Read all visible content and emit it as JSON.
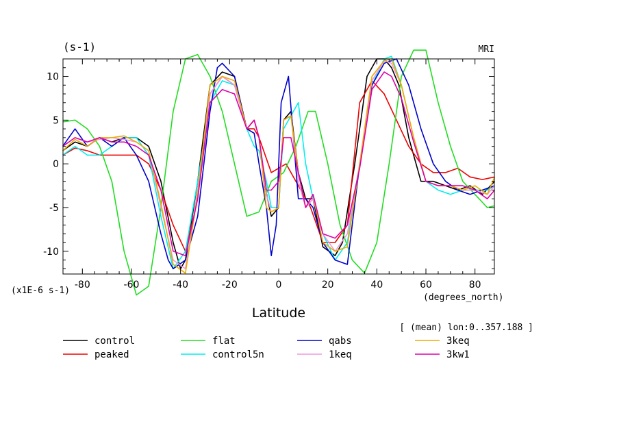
{
  "chart_data": {
    "type": "line",
    "units_label": "(s-1)",
    "model_label": "MRI",
    "scale_label": "(x1E-6 s-1)",
    "xunits_label": "(degrees_north)",
    "xlabel": "Latitude",
    "subtitle": "[ (mean) lon:0..357.188 ]",
    "xlim": [
      -87.9,
      87.9
    ],
    "ylim": [
      -12.6,
      12.0
    ],
    "xticks": [
      -80,
      -60,
      -40,
      -20,
      0,
      20,
      40,
      60,
      80
    ],
    "yticks": [
      -10,
      -5,
      0,
      5,
      10
    ],
    "xtick_labels": [
      "-80",
      "-60",
      "-40",
      "-20",
      "0",
      "20",
      "40",
      "60",
      "80"
    ],
    "ytick_labels": [
      "-10",
      "-5",
      "0",
      "5",
      "10"
    ],
    "series": [
      {
        "name": "control",
        "color": "#000000",
        "x": [
          -88,
          -83,
          -78,
          -73,
          -68,
          -63,
          -58,
          -53,
          -48,
          -43,
          -40,
          -38,
          -33,
          -28,
          -23,
          -18,
          -13,
          -10,
          -8,
          -6,
          -3,
          0,
          2,
          5,
          8,
          11,
          14,
          18,
          23,
          26,
          31,
          36,
          40,
          43,
          46,
          49,
          53,
          58,
          63,
          68,
          73,
          78,
          83,
          88
        ],
        "y": [
          1.5,
          2.5,
          2,
          3,
          2.5,
          3,
          3,
          2,
          -2,
          -9,
          -12,
          -11,
          -2,
          9,
          10.5,
          10,
          4,
          5,
          3,
          -2,
          -6,
          -5,
          5,
          6,
          -1,
          -4,
          -4,
          -9.5,
          -10.5,
          -9,
          0,
          10,
          12,
          12,
          11,
          9,
          3,
          -2,
          -2,
          -2.5,
          -3,
          -2.5,
          -3.5,
          -2
        ]
      },
      {
        "name": "peaked",
        "color": "#ee0000",
        "x": [
          -88,
          -83,
          -78,
          -73,
          -68,
          -63,
          -58,
          -53,
          -48,
          -43,
          -38,
          -33,
          -28,
          -23,
          -18,
          -13,
          -10,
          -8,
          -3,
          0,
          3,
          8,
          13,
          18,
          23,
          28,
          33,
          38,
          43,
          48,
          53,
          58,
          63,
          68,
          73,
          78,
          83,
          88
        ],
        "y": [
          1,
          1.8,
          1.5,
          1,
          1,
          1,
          1,
          0,
          -3,
          -7,
          -10,
          -4,
          8,
          10,
          9,
          4,
          4,
          3,
          -1,
          -0.5,
          0,
          -2.5,
          -5,
          -9,
          -9,
          -7,
          7,
          9.5,
          8,
          5,
          2,
          0,
          -1,
          -1,
          -0.5,
          -1.5,
          -1.8,
          -1.5
        ]
      },
      {
        "name": "flat",
        "color": "#22dd22",
        "x": [
          -88,
          -83,
          -78,
          -73,
          -68,
          -63,
          -58,
          -53,
          -48,
          -43,
          -38,
          -33,
          -28,
          -23,
          -18,
          -13,
          -8,
          -3,
          2,
          7,
          12,
          15,
          20,
          25,
          30,
          35,
          40,
          45,
          50,
          55,
          60,
          65,
          70,
          75,
          80,
          85,
          88
        ],
        "y": [
          4.8,
          5,
          4,
          2,
          -2,
          -10,
          -15,
          -14,
          -5,
          6,
          12,
          12.5,
          10,
          6,
          0,
          -6,
          -5.5,
          -2,
          -1,
          2,
          6,
          6,
          0,
          -7,
          -11,
          -12.5,
          -9,
          0,
          10,
          13,
          13,
          7,
          2,
          -2,
          -3.5,
          -5,
          -4.8
        ]
      },
      {
        "name": "control5n",
        "color": "#00eeee",
        "x": [
          -88,
          -83,
          -78,
          -73,
          -68,
          -63,
          -58,
          -53,
          -48,
          -43,
          -38,
          -33,
          -28,
          -23,
          -18,
          -13,
          -10,
          -8,
          -5,
          -3,
          0,
          2,
          5,
          8,
          11,
          14,
          18,
          23,
          28,
          33,
          38,
          43,
          46,
          50,
          55,
          60,
          65,
          70,
          75,
          80,
          85,
          88
        ],
        "y": [
          1,
          2,
          1,
          1,
          2,
          3,
          3,
          1,
          -6,
          -12,
          -10,
          -2,
          7,
          9.5,
          9,
          4,
          2,
          1.5,
          -2,
          -5,
          -5,
          4,
          5.5,
          7,
          0,
          -4,
          -8,
          -11,
          -9,
          0,
          9,
          12,
          12.3,
          9,
          3,
          -2,
          -3,
          -3.5,
          -3,
          -3,
          -3,
          -2.5
        ]
      },
      {
        "name": "qabs",
        "color": "#0000cc",
        "x": [
          -88,
          -83,
          -78,
          -73,
          -68,
          -63,
          -58,
          -53,
          -48,
          -45,
          -43,
          -38,
          -33,
          -28,
          -25,
          -23,
          -18,
          -13,
          -10,
          -8,
          -5,
          -3,
          -1,
          1,
          4,
          6,
          8,
          11,
          14,
          18,
          23,
          28,
          33,
          38,
          43,
          48,
          53,
          58,
          63,
          68,
          73,
          78,
          83,
          88
        ],
        "y": [
          2,
          4,
          2,
          3,
          2,
          3,
          1,
          -2,
          -8,
          -11,
          -12,
          -11,
          -6,
          6,
          11,
          11.5,
          10,
          4,
          3.5,
          0,
          -5,
          -10.5,
          -7,
          7,
          10,
          3,
          -4,
          -4,
          -5,
          -9,
          -11,
          -11.5,
          0,
          9,
          11.5,
          12,
          9,
          4,
          0,
          -2,
          -3,
          -3.5,
          -3,
          -2.5
        ]
      },
      {
        "name": "1keq",
        "color": "#ee99dd",
        "x": [
          -88,
          -83,
          -78,
          -73,
          -68,
          -63,
          -58,
          -53,
          -48,
          -43,
          -38,
          -33,
          -28,
          -23,
          -18,
          -13,
          -10,
          -8,
          -5,
          -3,
          0,
          2,
          5,
          8,
          11,
          14,
          18,
          23,
          28,
          33,
          38,
          43,
          46,
          50,
          55,
          60,
          65,
          70,
          75,
          80,
          85,
          88
        ],
        "y": [
          2,
          3,
          2.5,
          2.8,
          3,
          2.8,
          2.5,
          1.5,
          -5,
          -11,
          -12,
          -3,
          8,
          10,
          9,
          4,
          5,
          3,
          -3.5,
          -5.5,
          -5,
          5,
          5.5,
          -2,
          -5,
          -4,
          -8,
          -10,
          -8,
          0,
          9.5,
          11.8,
          11.5,
          9,
          3,
          -2,
          -2.5,
          -2.5,
          -3,
          -3,
          -3.5,
          -2.5
        ]
      },
      {
        "name": "3keq",
        "color": "#eeaa00",
        "x": [
          -88,
          -83,
          -78,
          -73,
          -68,
          -63,
          -58,
          -53,
          -48,
          -43,
          -38,
          -33,
          -28,
          -23,
          -18,
          -13,
          -10,
          -8,
          -5,
          -3,
          0,
          2,
          5,
          8,
          11,
          14,
          18,
          23,
          28,
          33,
          38,
          43,
          46,
          50,
          55,
          60,
          65,
          70,
          75,
          80,
          85,
          88
        ],
        "y": [
          1.5,
          2.8,
          2,
          3,
          3,
          3.2,
          2.5,
          1.5,
          -4.5,
          -11.5,
          -12.5,
          -3.5,
          9,
          10,
          9.5,
          4,
          5,
          3,
          -5,
          -5.5,
          -5,
          5,
          5.5,
          -1,
          -5,
          -3.5,
          -9,
          -10,
          -9.5,
          0,
          10,
          11.8,
          12,
          9,
          3,
          -2,
          -2.5,
          -2.5,
          -3,
          -2.5,
          -3.5,
          -1.5
        ]
      },
      {
        "name": "3kw1",
        "color": "#dd00aa",
        "x": [
          -88,
          -83,
          -78,
          -73,
          -68,
          -63,
          -58,
          -53,
          -48,
          -43,
          -38,
          -33,
          -28,
          -23,
          -18,
          -13,
          -10,
          -8,
          -5,
          -3,
          0,
          2,
          5,
          8,
          11,
          14,
          18,
          23,
          28,
          33,
          38,
          43,
          46,
          50,
          55,
          60,
          65,
          70,
          75,
          80,
          85,
          88
        ],
        "y": [
          2,
          3,
          2.5,
          3,
          2.5,
          2.5,
          2,
          1,
          -3,
          -10,
          -10.5,
          -4,
          7,
          8.5,
          8,
          4,
          5,
          3,
          -3,
          -3,
          -2,
          3,
          3,
          -1,
          -5,
          -3.5,
          -8,
          -8.5,
          -7,
          -0.5,
          8.5,
          10.5,
          10,
          7.5,
          2.5,
          -2,
          -2.5,
          -2.5,
          -2.5,
          -3,
          -4,
          -3
        ]
      }
    ]
  }
}
